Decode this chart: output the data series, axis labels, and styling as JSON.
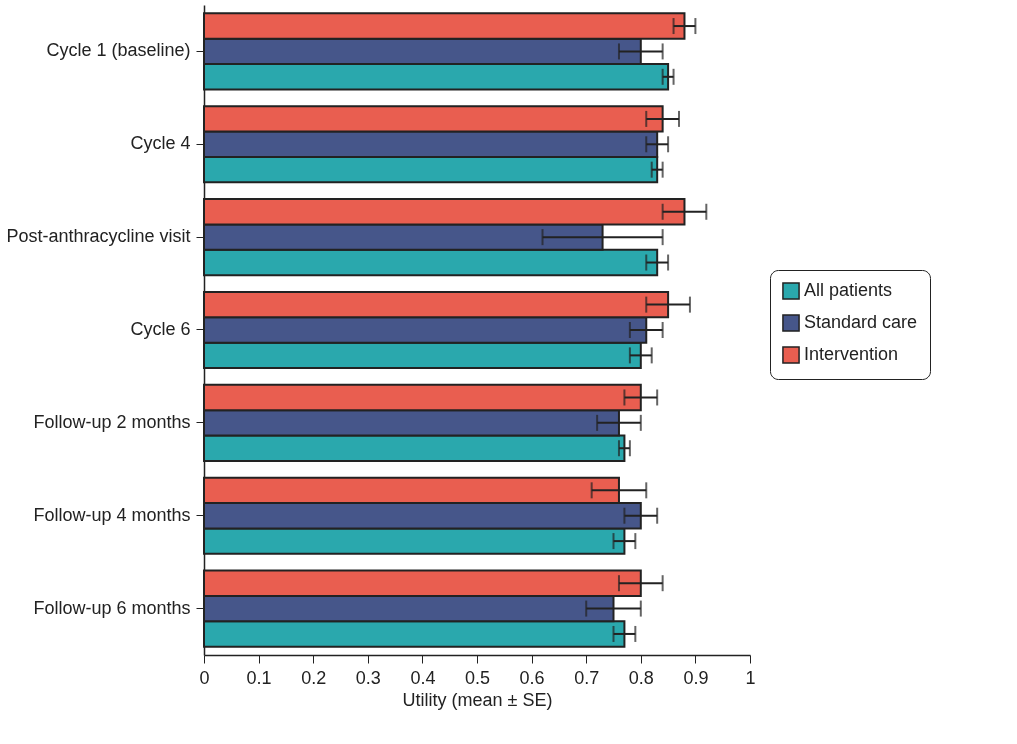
{
  "chart_data": {
    "type": "bar",
    "orientation": "horizontal",
    "xlabel": "Utility (mean ± SE)",
    "categories": [
      "Cycle 1  (baseline)",
      "Cycle 4",
      "Post-anthracycline visit",
      "Cycle 6",
      "Follow-up 2 months",
      "Follow-up 4 months",
      "Follow-up 6 months"
    ],
    "series": [
      {
        "name": "All patients",
        "color": "#2aa8ad",
        "values": [
          0.85,
          0.83,
          0.83,
          0.8,
          0.77,
          0.77,
          0.77
        ],
        "errors": [
          [
            0.84,
            0.86
          ],
          [
            0.82,
            0.84
          ],
          [
            0.81,
            0.85
          ],
          [
            0.78,
            0.82
          ],
          [
            0.76,
            0.78
          ],
          [
            0.75,
            0.79
          ],
          [
            0.75,
            0.79
          ]
        ]
      },
      {
        "name": "Standard care",
        "color": "#46568a",
        "values": [
          0.8,
          0.83,
          0.73,
          0.81,
          0.76,
          0.8,
          0.75
        ],
        "errors": [
          [
            0.76,
            0.84
          ],
          [
            0.81,
            0.85
          ],
          [
            0.62,
            0.84
          ],
          [
            0.78,
            0.84
          ],
          [
            0.72,
            0.8
          ],
          [
            0.77,
            0.83
          ],
          [
            0.7,
            0.8
          ]
        ]
      },
      {
        "name": "Intervention",
        "color": "#e95e50",
        "values": [
          0.88,
          0.84,
          0.88,
          0.85,
          0.8,
          0.76,
          0.8
        ],
        "errors": [
          [
            0.86,
            0.9
          ],
          [
            0.81,
            0.87
          ],
          [
            0.84,
            0.92
          ],
          [
            0.81,
            0.89
          ],
          [
            0.77,
            0.83
          ],
          [
            0.71,
            0.81
          ],
          [
            0.76,
            0.84
          ]
        ]
      }
    ],
    "xlim": [
      0,
      1
    ],
    "xticks": [
      0,
      0.1,
      0.2,
      0.3,
      0.4,
      0.5,
      0.6,
      0.7,
      0.8,
      0.9,
      1
    ],
    "grid": false,
    "legend": "right"
  }
}
